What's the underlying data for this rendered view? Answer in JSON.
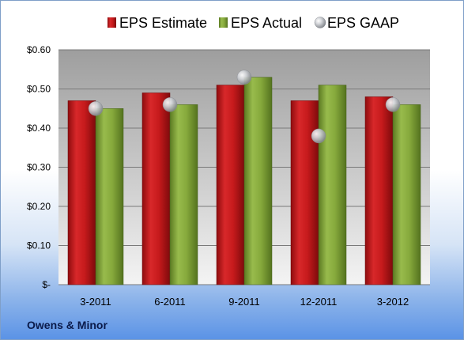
{
  "company": "Owens & Minor",
  "colors": {
    "estimate": "#c8181c",
    "actual": "#84a83c",
    "gaap": "#b8bcc4"
  },
  "chart_data": {
    "type": "bar",
    "categories": [
      "3-2011",
      "6-2011",
      "9-2011",
      "12-2011",
      "3-2012"
    ],
    "series": [
      {
        "name": "EPS Estimate",
        "type": "bar",
        "values": [
          0.47,
          0.49,
          0.51,
          0.47,
          0.48
        ]
      },
      {
        "name": "EPS Actual",
        "type": "bar",
        "values": [
          0.45,
          0.46,
          0.53,
          0.51,
          0.46
        ]
      },
      {
        "name": "EPS GAAP",
        "type": "scatter",
        "values": [
          0.45,
          0.46,
          0.53,
          0.38,
          0.46
        ]
      }
    ],
    "yticks": [
      "$-",
      "$0.10",
      "$0.20",
      "$0.30",
      "$0.40",
      "$0.50",
      "$0.60"
    ],
    "ylim": [
      0,
      0.6
    ],
    "grid": true,
    "legend": "top",
    "title": "",
    "xlabel": "",
    "ylabel": ""
  }
}
